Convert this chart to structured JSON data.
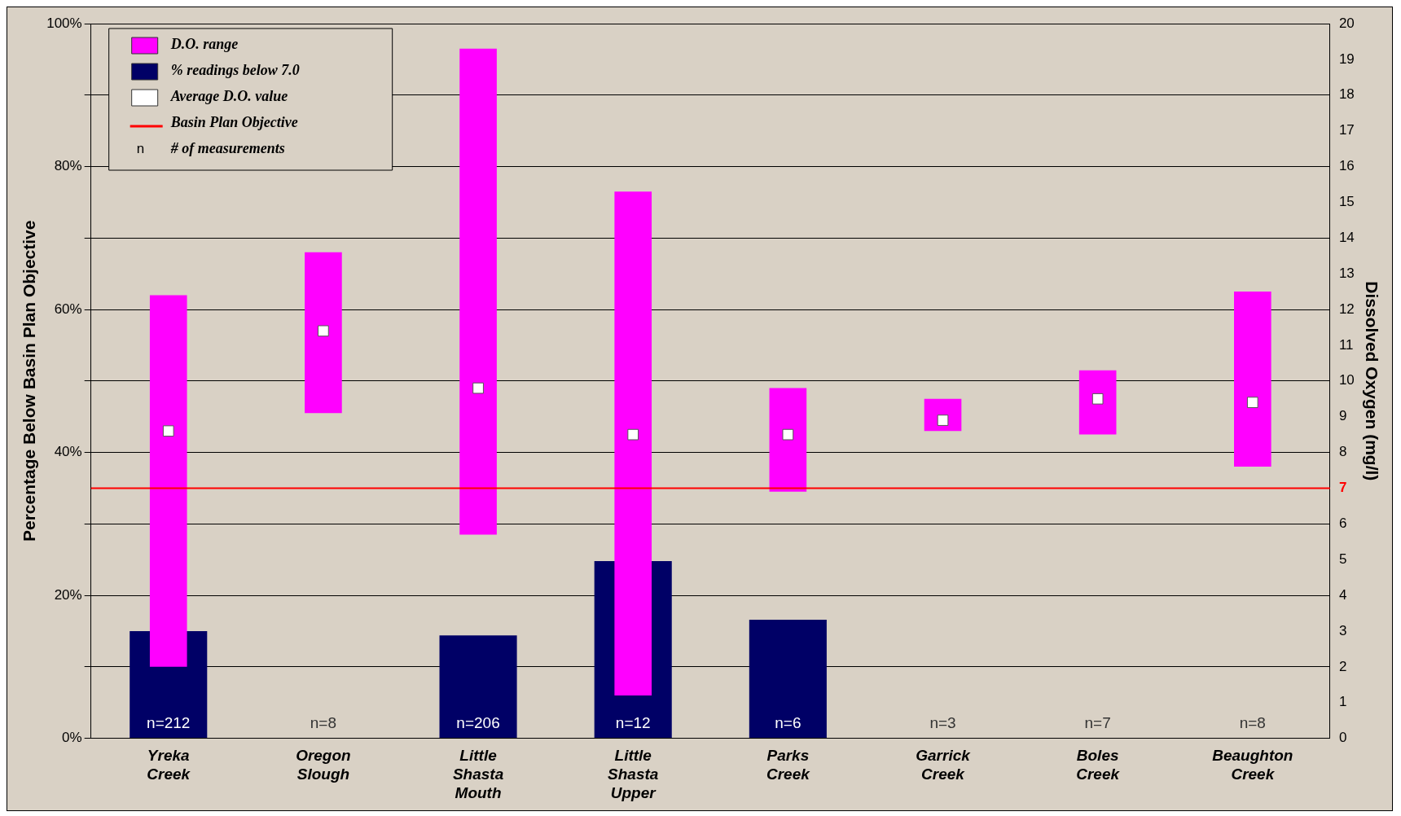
{
  "chart_data": {
    "type": "bar",
    "ylabel": "Percentage Below Basin Plan Objective",
    "y2label": "Dissolved Oxygen (mg/l)",
    "categories": [
      "Yreka Creek",
      "Oregon Slough",
      "Little Shasta Mouth",
      "Little Shasta Upper",
      "Parks Creek",
      "Garrick Creek",
      "Boles Creek",
      "Beaughton Creek"
    ],
    "series": [
      {
        "name": "% readings below 7.0",
        "color": "#000066",
        "values": [
          15,
          null,
          14.4,
          24.8,
          16.6,
          null,
          null,
          null
        ]
      },
      {
        "name": "D.O. range",
        "axis": "y2",
        "color": "#ff00ff",
        "base": [
          2.0,
          9.1,
          5.7,
          1.2,
          6.9,
          8.6,
          8.5,
          7.6
        ],
        "values": [
          10.4,
          4.5,
          13.6,
          14.1,
          2.9,
          0.9,
          1.8,
          4.9
        ]
      },
      {
        "name": "Average D.O. value",
        "type": "scatter",
        "axis": "y2",
        "color": "#ffffff",
        "marker": "square",
        "x": [
          "Yreka Creek",
          "Oregon Slough",
          "Little Shasta Mouth",
          "Little Shasta Upper",
          "Parks Creek",
          "Garrick Creek",
          "Boles Creek",
          "Beaughton Creek"
        ],
        "values": [
          8.6,
          11.4,
          9.8,
          8.5,
          8.5,
          8.9,
          9.5,
          9.4
        ]
      }
    ],
    "ylim": [
      0,
      100
    ],
    "yticks": [
      {
        "value": 0,
        "label": "0%"
      },
      {
        "value": 10,
        "label": null
      },
      {
        "value": 20,
        "label": "20%"
      },
      {
        "value": 30,
        "label": null
      },
      {
        "value": 40,
        "label": "40%"
      },
      {
        "value": 50,
        "label": null
      },
      {
        "value": 60,
        "label": "60%"
      },
      {
        "value": 70,
        "label": null
      },
      {
        "value": 80,
        "label": "80%"
      },
      {
        "value": 90,
        "label": null
      },
      {
        "value": 100,
        "label": "100%"
      }
    ],
    "y2lim": [
      0,
      20
    ],
    "y2ticks": [
      0,
      1,
      2,
      3,
      4,
      5,
      6,
      7,
      8,
      9,
      10,
      11,
      12,
      13,
      14,
      15,
      16,
      17,
      18,
      19,
      20
    ],
    "ref_lines": [
      {
        "axis": "y2",
        "value": 7,
        "label": "Basin Plan Objective",
        "color": "#ff0000"
      }
    ],
    "annotations": [
      "n=212",
      "n=8",
      "n=206",
      "n=12",
      "n=6",
      "n=3",
      "n=7",
      "n=8",
      "n # of measurements"
    ],
    "grid": "y",
    "legend": "top left"
  }
}
